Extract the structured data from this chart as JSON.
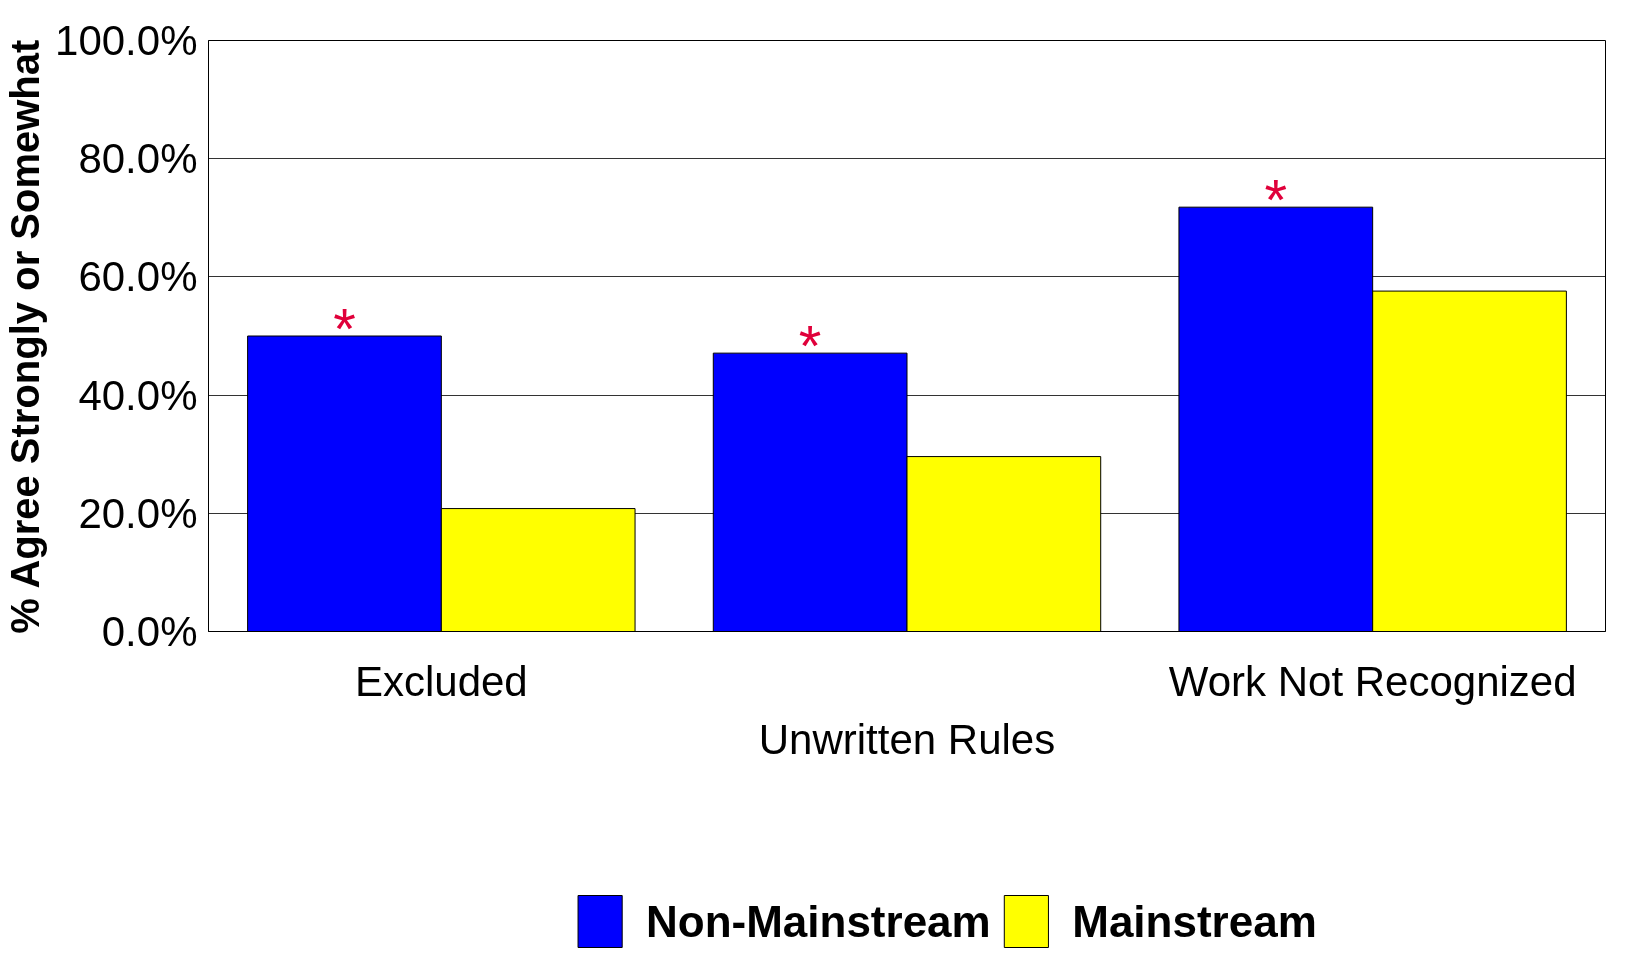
{
  "chart_data": {
    "type": "bar",
    "ylabel": "% Agree Strongly or Somewhat",
    "categories": [
      "Excluded",
      "Unwritten Rules",
      "Work Not Recognized"
    ],
    "series": [
      {
        "name": "Non-Mainstream",
        "color": "#0000ff",
        "values": [
          50,
          47.1,
          71.8
        ]
      },
      {
        "name": "Mainstream",
        "color": "#ffff00",
        "values": [
          20.8,
          29.6,
          57.6
        ]
      }
    ],
    "ylim": [
      0,
      100
    ],
    "yticks": [
      {
        "value": 0,
        "label": "0.0%"
      },
      {
        "value": 20,
        "label": "20.0%"
      },
      {
        "value": 40,
        "label": "40.0%"
      },
      {
        "value": 60,
        "label": "60.0%"
      },
      {
        "value": 80,
        "label": "80.0%"
      },
      {
        "value": 100,
        "label": "100.0%"
      }
    ],
    "grid": "y",
    "legend": "bottom",
    "annotations": [
      {
        "text": "*",
        "x": "Excluded",
        "y": 50
      },
      {
        "text": "*",
        "x": "Unwritten Rules",
        "y": 47.1
      },
      {
        "text": "*",
        "x": "Work Not Recognized",
        "y": 71.8
      }
    ]
  }
}
